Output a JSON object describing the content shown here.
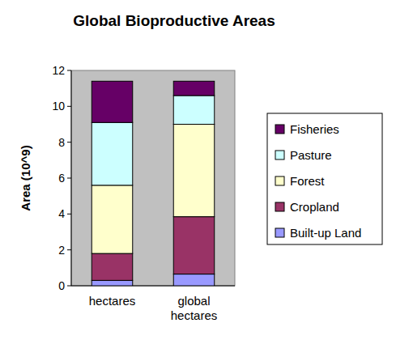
{
  "chart_data": {
    "type": "bar",
    "title": "Global Bioproductive Areas",
    "y_label": "Area (10^9)",
    "categories": [
      "hectares",
      "global hectares"
    ],
    "series": [
      {
        "name": "Built-up Land",
        "color": "#9999ff",
        "values": [
          0.3,
          0.65
        ]
      },
      {
        "name": "Cropland",
        "color": "#993366",
        "values": [
          1.5,
          3.2
        ]
      },
      {
        "name": "Forest",
        "color": "#ffffcc",
        "values": [
          3.8,
          5.15
        ]
      },
      {
        "name": "Pasture",
        "color": "#ccffff",
        "values": [
          3.5,
          1.6
        ]
      },
      {
        "name": "Fisheries",
        "color": "#660066",
        "values": [
          2.3,
          0.8
        ]
      }
    ],
    "stacked": true,
    "ylim": [
      0,
      12
    ],
    "yticks": [
      0,
      2,
      4,
      6,
      8,
      10,
      12
    ],
    "grid": false,
    "legend": "right"
  }
}
